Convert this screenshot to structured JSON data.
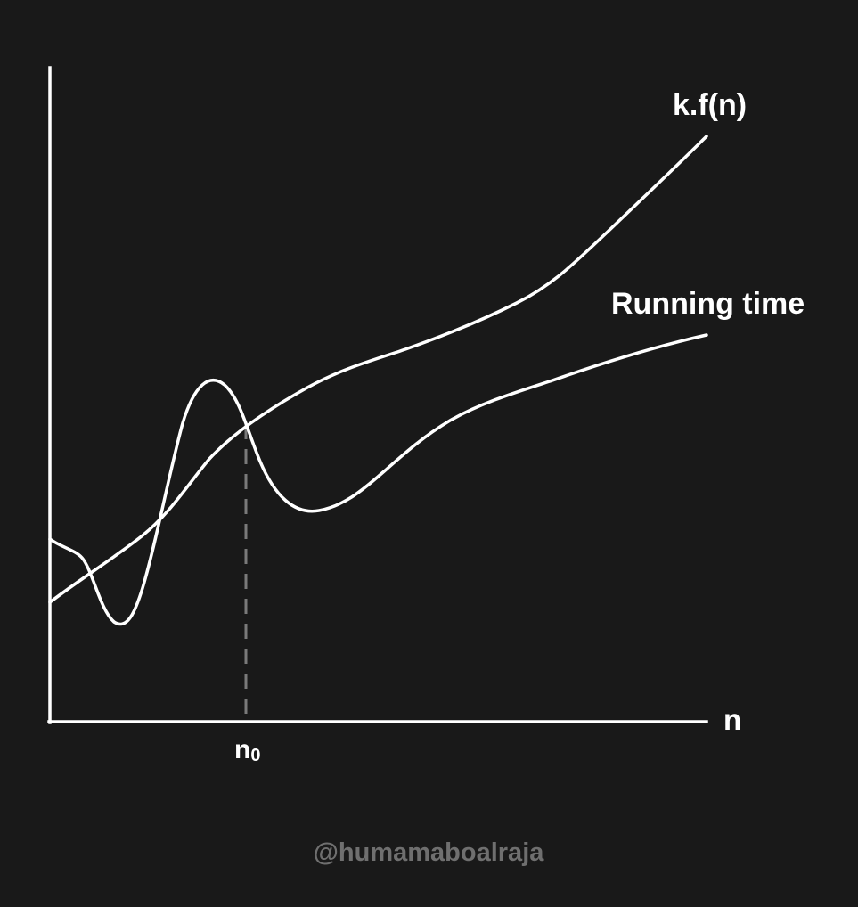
{
  "colors": {
    "background": "#191919",
    "stroke": "#ffffff",
    "dashed_line": "#7a7a7a",
    "watermark": "#6f6f6f"
  },
  "curves": {
    "upper_bound_label": "k.f(n)",
    "running_time_label": "Running time"
  },
  "axes": {
    "x_label": "n",
    "threshold_base": "n",
    "threshold_subscript": "0"
  },
  "watermark": "@humamaboalraja"
}
